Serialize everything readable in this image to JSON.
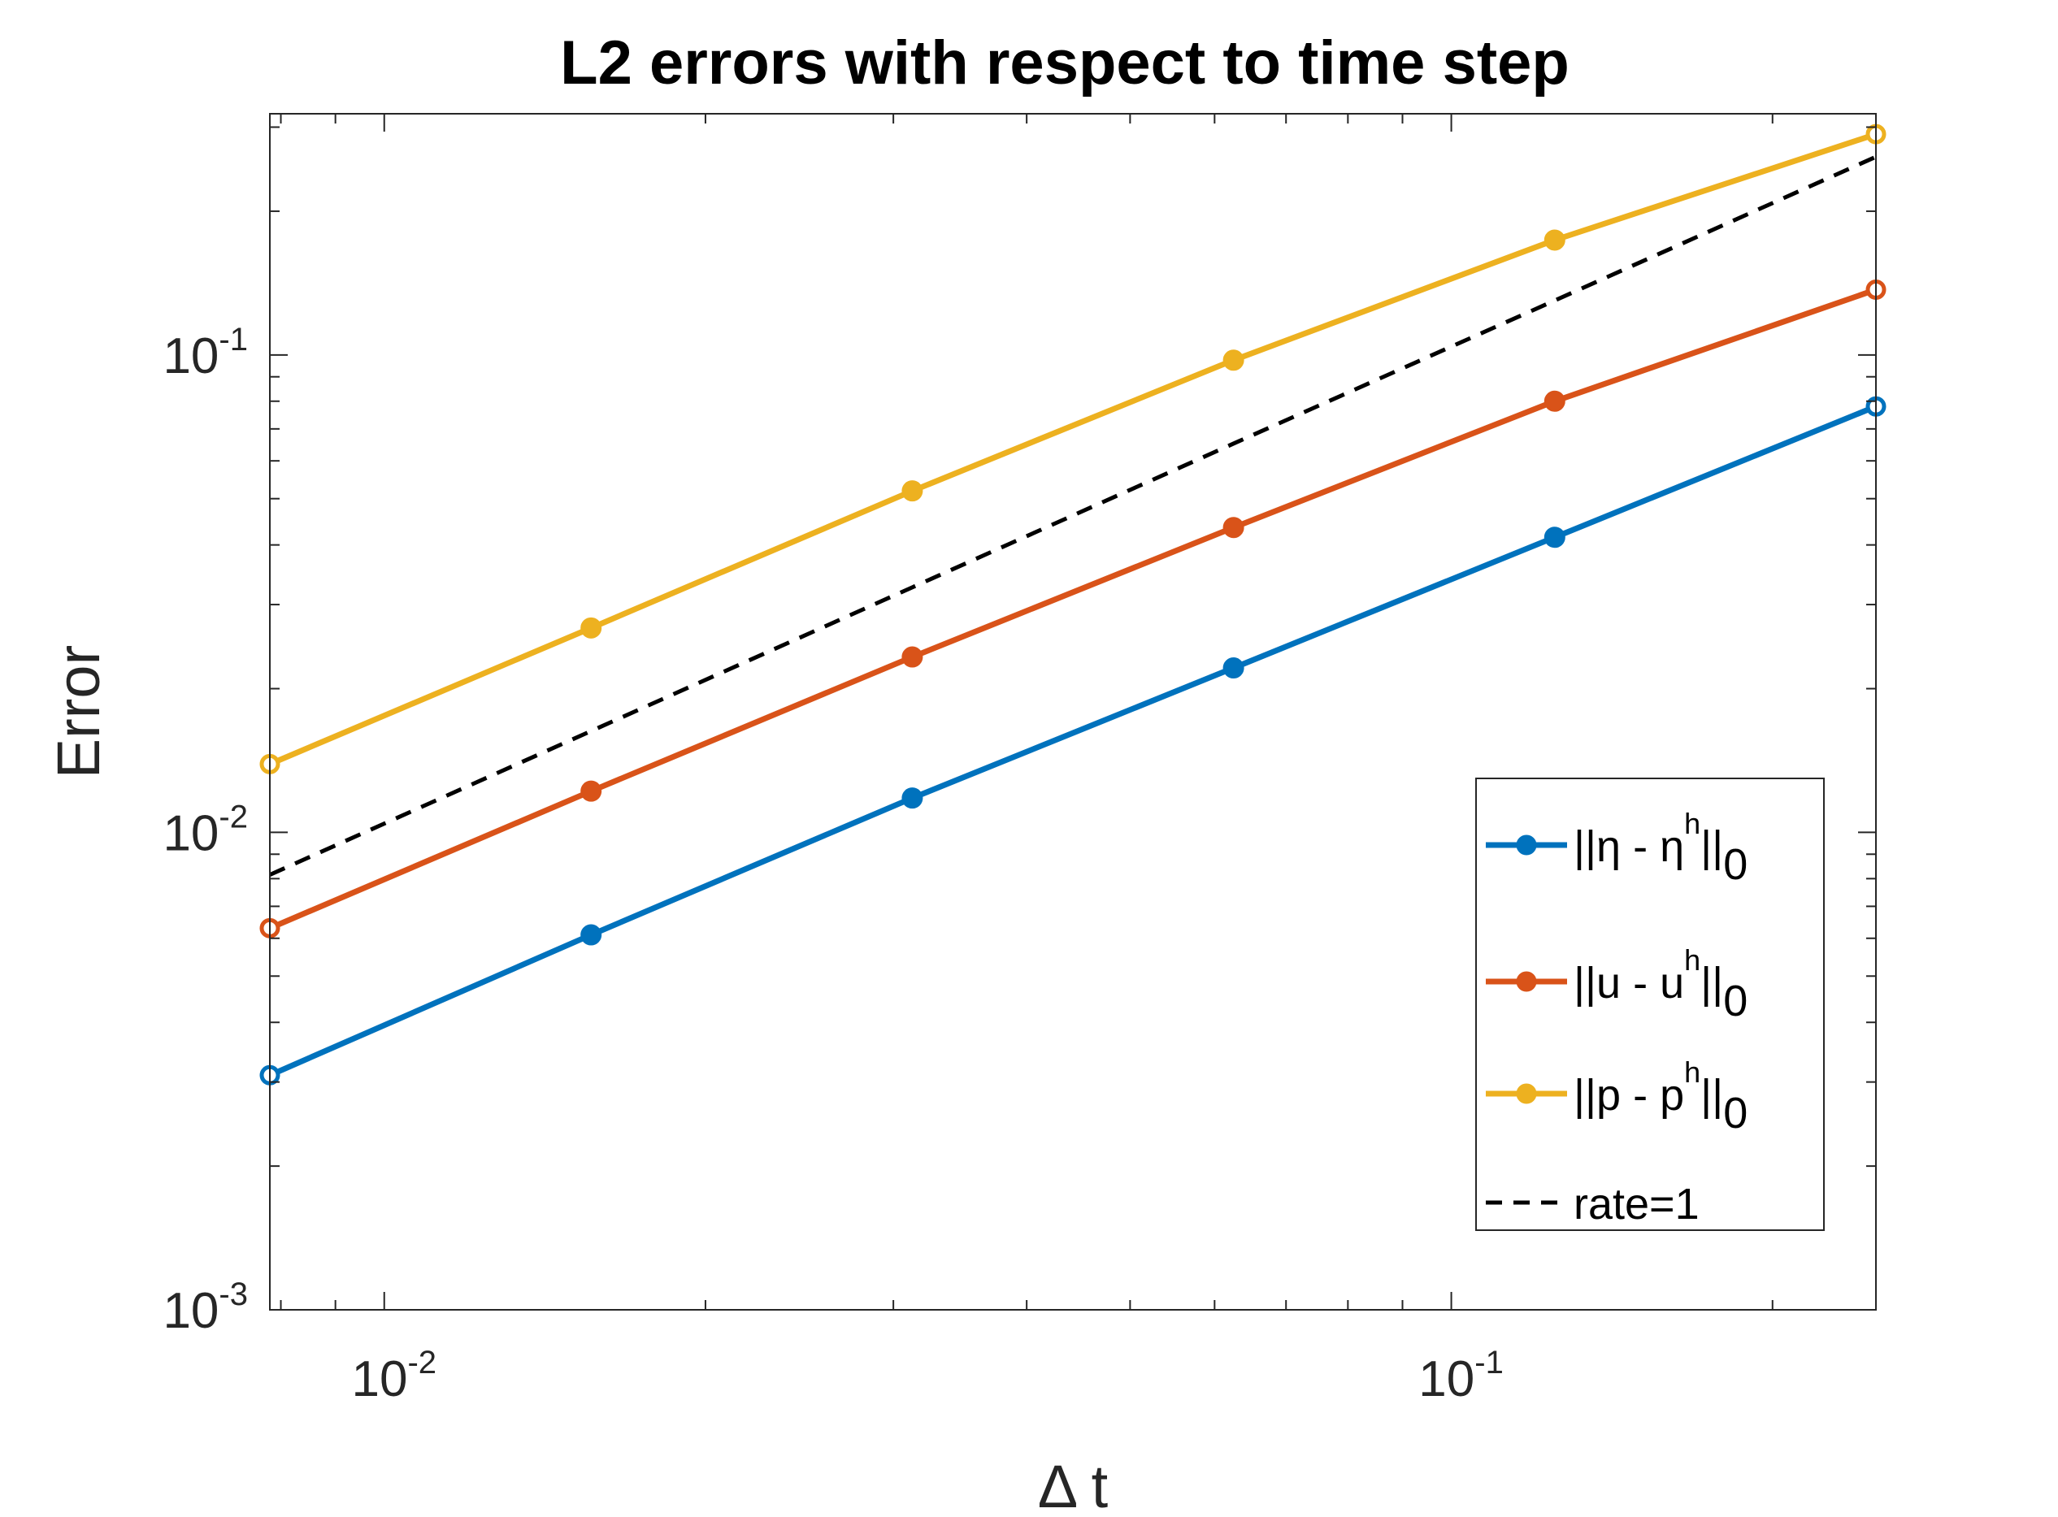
{
  "chart_data": {
    "type": "line",
    "title": "L2 errors with respect to time step",
    "xlabel": "Δ t",
    "ylabel": "Error",
    "xscale": "log",
    "yscale": "log",
    "xlim": [
      0.0078125,
      0.25
    ],
    "ylim": [
      0.001,
      0.32
    ],
    "xticks": [
      {
        "value": 0.01,
        "base": "10",
        "exp": "-2"
      },
      {
        "value": 0.1,
        "base": "10",
        "exp": "-1"
      }
    ],
    "yticks": [
      {
        "value": 0.001,
        "base": "10",
        "exp": "-3"
      },
      {
        "value": 0.01,
        "base": "10",
        "exp": "-2"
      },
      {
        "value": 0.1,
        "base": "10",
        "exp": "-1"
      }
    ],
    "x": [
      0.0078125,
      0.015625,
      0.03125,
      0.0625,
      0.125,
      0.25
    ],
    "series": [
      {
        "name": "||η - ηh||0",
        "label_parts": [
          "||η - η",
          "h",
          "||",
          "0"
        ],
        "color": "#0072BD",
        "style": "solid",
        "marker": "circle",
        "values": [
          0.0031,
          0.0061,
          0.0118,
          0.0221,
          0.0415,
          0.078
        ]
      },
      {
        "name": "||u - uh||0",
        "label_parts": [
          "||u - u",
          "h",
          "||",
          "0"
        ],
        "color": "#D95319",
        "style": "solid",
        "marker": "circle",
        "values": [
          0.0063,
          0.0122,
          0.0233,
          0.0435,
          0.08,
          0.137
        ]
      },
      {
        "name": "||p - ph||0",
        "label_parts": [
          "||p - p",
          "h",
          "||",
          "0"
        ],
        "color": "#EDB120",
        "style": "solid",
        "marker": "circle",
        "values": [
          0.0139,
          0.0268,
          0.0519,
          0.0975,
          0.174,
          0.29
        ]
      },
      {
        "name": "rate=1",
        "label_parts": [
          "rate=1"
        ],
        "color": "#000000",
        "style": "dashed",
        "marker": "none",
        "values": [
          0.00815,
          0.0163,
          0.0326,
          0.0652,
          0.13,
          0.26
        ]
      }
    ],
    "legend_position": "lower-right",
    "grid": false
  }
}
